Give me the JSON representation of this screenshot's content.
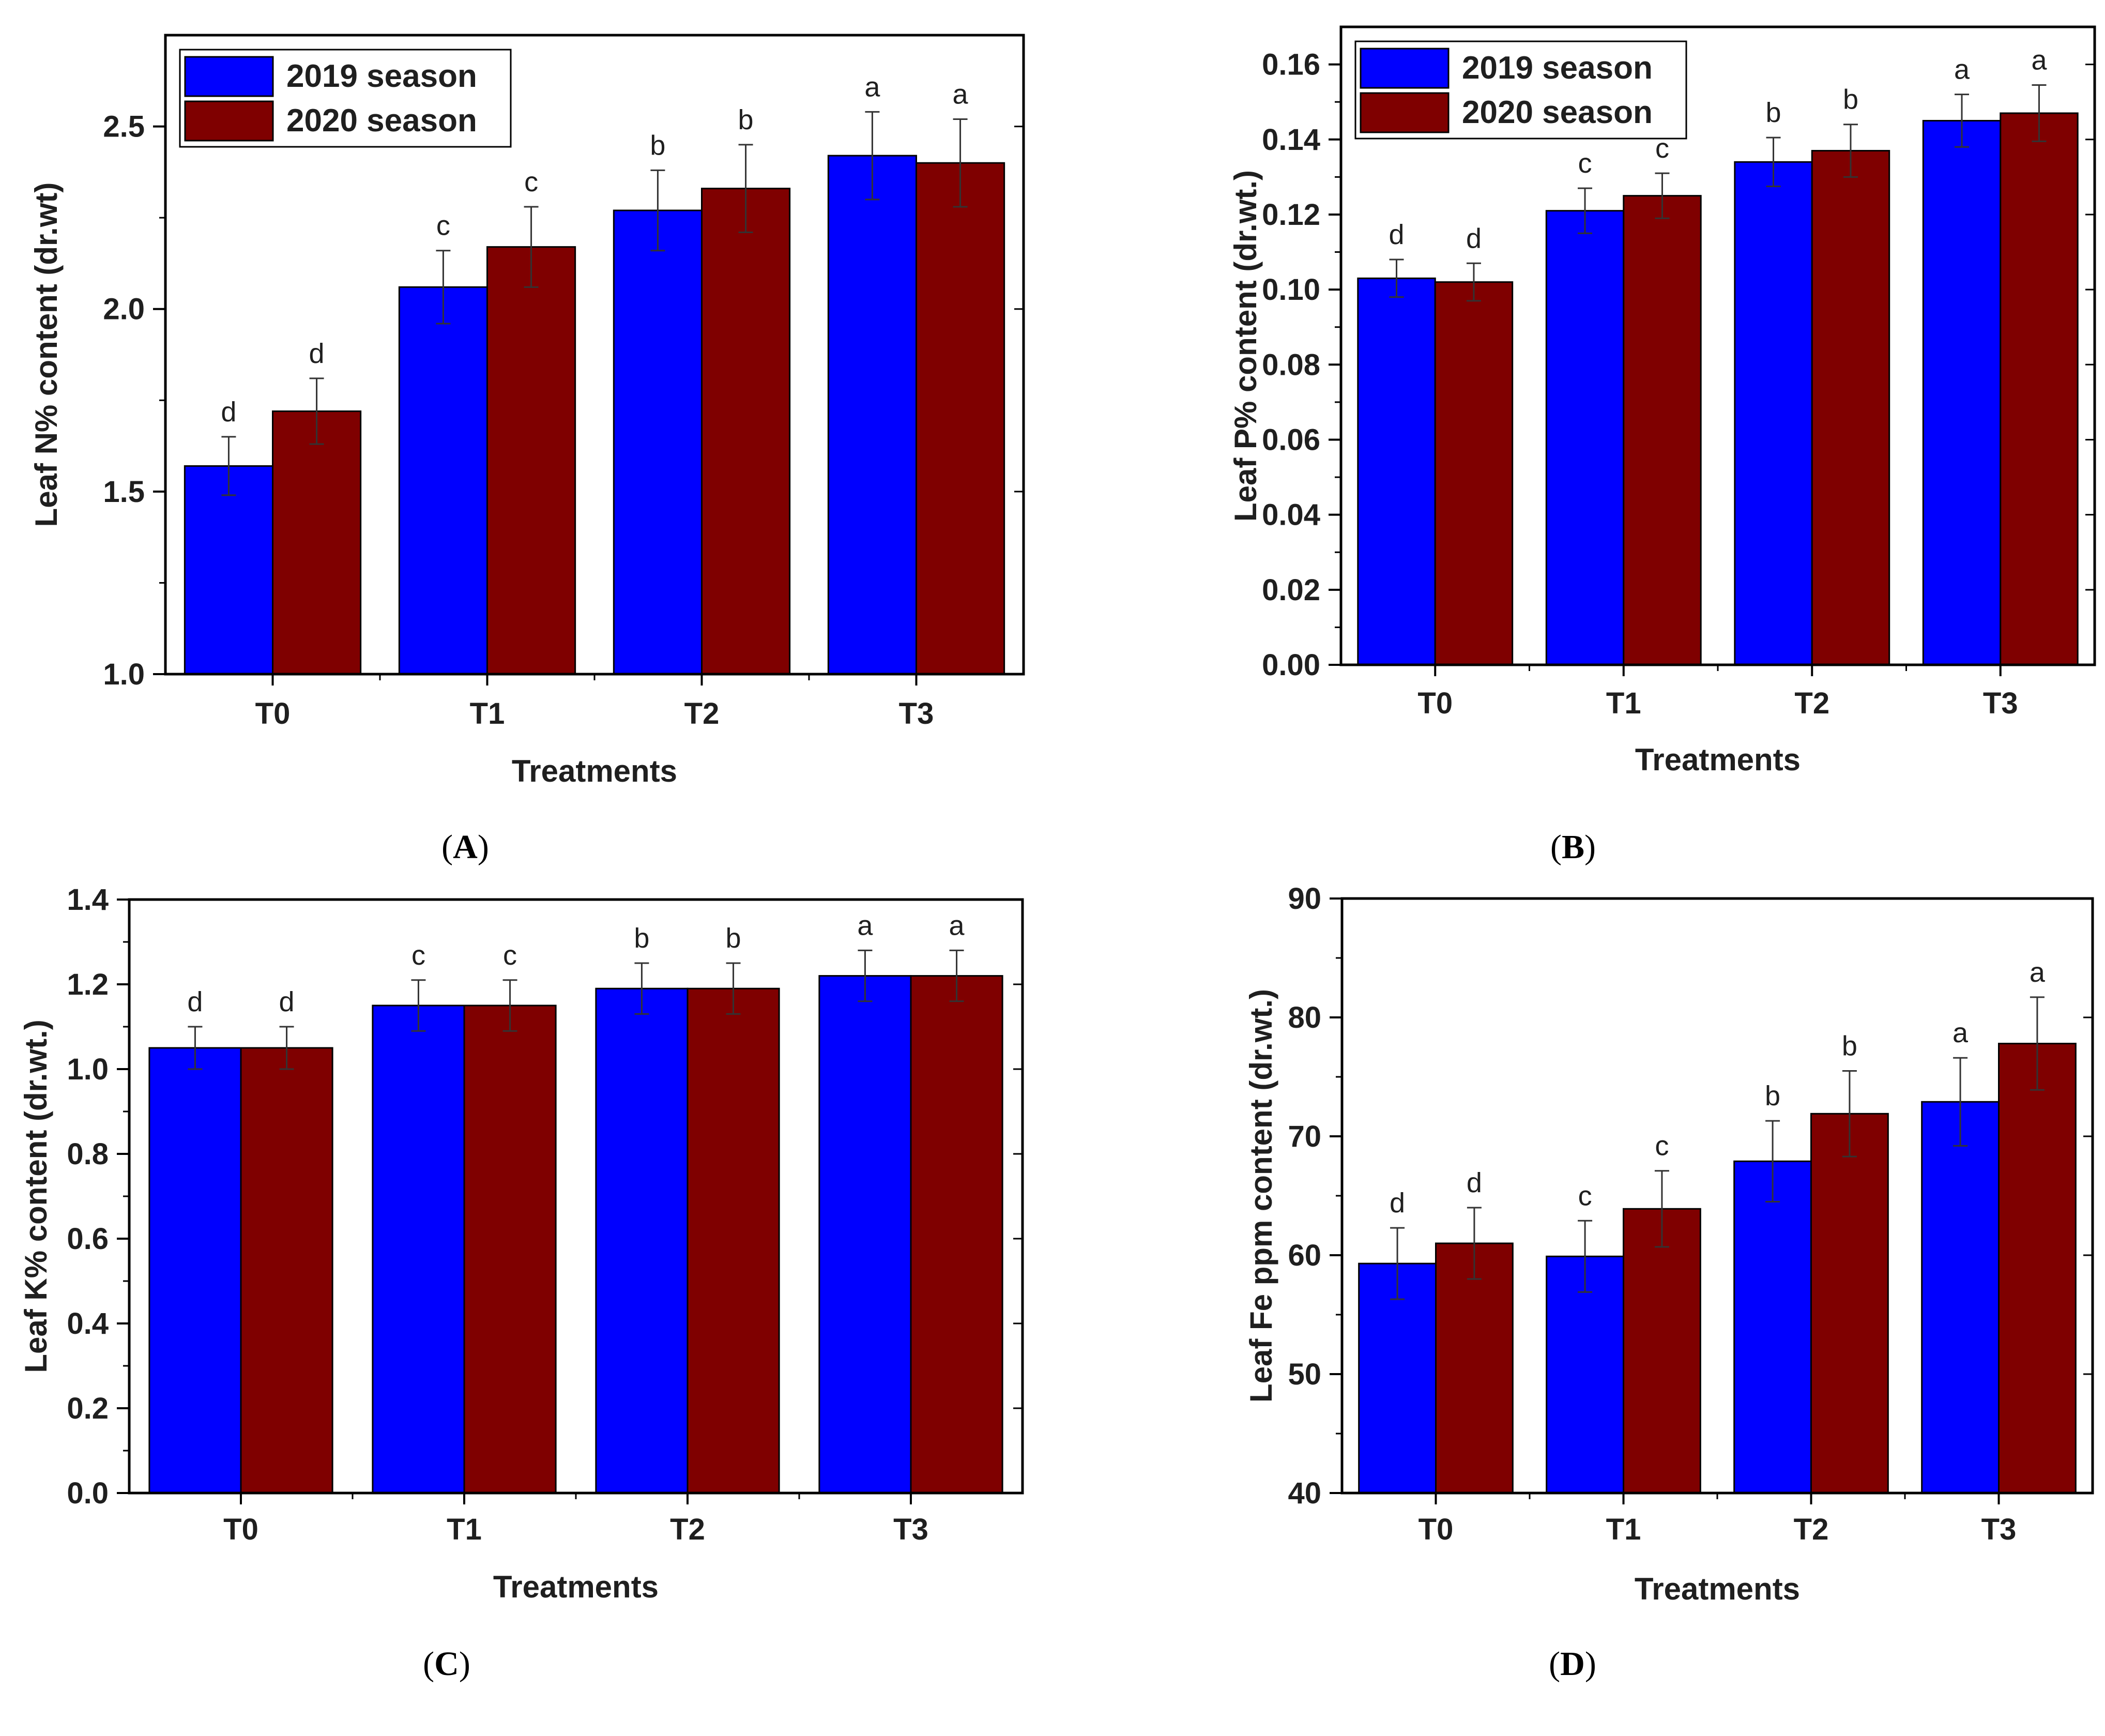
{
  "colors": {
    "season_2019": "#0000ff",
    "season_2020": "#7f0000",
    "axis": "#000000",
    "text": "#1f1f1f"
  },
  "chart_data": [
    {
      "type": "bar",
      "panel": "A",
      "caption": {
        "open": "(",
        "letter": "A",
        "close": ")"
      },
      "xlabel": "Treatments",
      "ylabel": "Leaf N% content (dr.wt)",
      "categories": [
        "T0",
        "T1",
        "T2",
        "T3"
      ],
      "ylim": [
        1.0,
        2.75
      ],
      "yticks": [
        1.0,
        1.5,
        2.0,
        2.5
      ],
      "tick_decimals": 1,
      "legend": {
        "position": "top-left",
        "entries": [
          "2019 season",
          "2020 season"
        ]
      },
      "series": [
        {
          "name": "2019 season",
          "values": [
            1.57,
            2.06,
            2.27,
            2.42
          ],
          "errors": [
            0.08,
            0.1,
            0.11,
            0.12
          ],
          "letters": [
            "d",
            "c",
            "b",
            "a"
          ]
        },
        {
          "name": "2020 season",
          "values": [
            1.72,
            2.17,
            2.33,
            2.4
          ],
          "errors": [
            0.09,
            0.11,
            0.12,
            0.12
          ],
          "letters": [
            "d",
            "c",
            "b",
            "a"
          ]
        }
      ]
    },
    {
      "type": "bar",
      "panel": "B",
      "caption": {
        "open": "(",
        "letter": "B",
        "close": ")"
      },
      "xlabel": "Treatments",
      "ylabel": "Leaf P% content (dr.wt.)",
      "categories": [
        "T0",
        "T1",
        "T2",
        "T3"
      ],
      "ylim": [
        0.0,
        0.17
      ],
      "yticks": [
        0.0,
        0.02,
        0.04,
        0.06,
        0.08,
        0.1,
        0.12,
        0.14,
        0.16
      ],
      "tick_decimals": 2,
      "legend": {
        "position": "top-left",
        "entries": [
          "2019 season",
          "2020 season"
        ]
      },
      "series": [
        {
          "name": "2019 season",
          "values": [
            0.103,
            0.121,
            0.134,
            0.145
          ],
          "errors": [
            0.005,
            0.006,
            0.0065,
            0.007
          ],
          "letters": [
            "d",
            "c",
            "b",
            "a"
          ]
        },
        {
          "name": "2020 season",
          "values": [
            0.102,
            0.125,
            0.137,
            0.147
          ],
          "errors": [
            0.005,
            0.006,
            0.007,
            0.0075
          ],
          "letters": [
            "d",
            "c",
            "b",
            "a"
          ]
        }
      ]
    },
    {
      "type": "bar",
      "panel": "C",
      "caption": {
        "open": "(",
        "letter": "C",
        "close": ")"
      },
      "xlabel": "Treatments",
      "ylabel": "Leaf K% content (dr.wt.)",
      "categories": [
        "T0",
        "T1",
        "T2",
        "T3"
      ],
      "ylim": [
        0.0,
        1.4
      ],
      "yticks": [
        0.0,
        0.2,
        0.4,
        0.6,
        0.8,
        1.0,
        1.2,
        1.4
      ],
      "tick_decimals": 1,
      "series": [
        {
          "name": "2019 season",
          "values": [
            1.05,
            1.15,
            1.19,
            1.22
          ],
          "errors": [
            0.05,
            0.06,
            0.06,
            0.06
          ],
          "letters": [
            "d",
            "c",
            "b",
            "a"
          ]
        },
        {
          "name": "2020 season",
          "values": [
            1.05,
            1.15,
            1.19,
            1.22
          ],
          "errors": [
            0.05,
            0.06,
            0.06,
            0.06
          ],
          "letters": [
            "d",
            "c",
            "b",
            "a"
          ]
        }
      ]
    },
    {
      "type": "bar",
      "panel": "D",
      "caption": {
        "open": "(",
        "letter": "D",
        "close": ")"
      },
      "xlabel": "Treatments",
      "ylabel": "Leaf Fe ppm content (dr.wt.)",
      "categories": [
        "T0",
        "T1",
        "T2",
        "T3"
      ],
      "ylim": [
        40,
        90
      ],
      "yticks": [
        40,
        50,
        60,
        70,
        80,
        90
      ],
      "tick_decimals": 0,
      "series": [
        {
          "name": "2019 season",
          "values": [
            59.3,
            59.9,
            67.9,
            72.9
          ],
          "errors": [
            3.0,
            3.0,
            3.4,
            3.7
          ],
          "letters": [
            "d",
            "c",
            "b",
            "a"
          ]
        },
        {
          "name": "2020 season",
          "values": [
            61.0,
            63.9,
            71.9,
            77.8
          ],
          "errors": [
            3.0,
            3.2,
            3.6,
            3.9
          ],
          "letters": [
            "d",
            "c",
            "b",
            "a"
          ]
        }
      ]
    }
  ]
}
